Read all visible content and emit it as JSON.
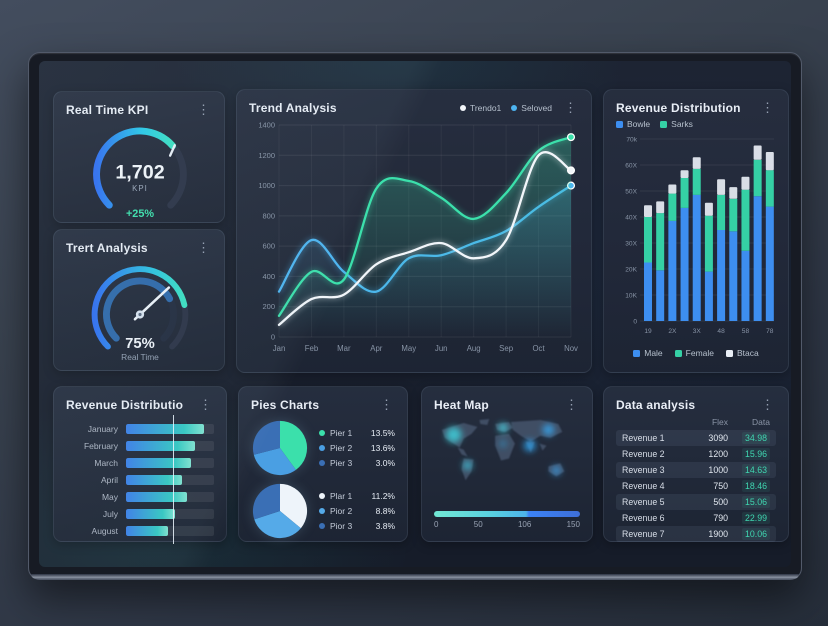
{
  "icons": {
    "kebab": "⋮"
  },
  "colors": {
    "accent_blue": "#3d8ef0",
    "accent_teal": "#35d0a5",
    "accent_cyan": "#4db4f0",
    "accent_mint": "#3be0ab",
    "text_light": "#e9eef6",
    "text_muted": "#98a2b3",
    "panel_bg": "#272f40",
    "screen_bg": "#1a2130"
  },
  "panels": {
    "kpi": {
      "title": "Real Time KPI"
    },
    "gauge2": {
      "title": "Trert Analysis"
    },
    "trend": {
      "title": "Trend Analysis"
    },
    "revbar": {
      "title": "Revenue Distribution"
    },
    "hbar": {
      "title": "Revenue Distributio"
    },
    "pies": {
      "title": "Pies Charts"
    },
    "heat": {
      "title": "Heat Map"
    },
    "table": {
      "title": "Data analysis"
    }
  },
  "chart_data": [
    {
      "id": "kpi_gauge",
      "type": "gauge",
      "value": "1,702",
      "label": "KPI",
      "delta": "+25%",
      "percent": 68
    },
    {
      "id": "rt_gauge",
      "type": "gauge",
      "value": "75%",
      "label": "Real Time",
      "percent": 75
    },
    {
      "id": "trend",
      "type": "line",
      "title": "Trend Analysis",
      "x": [
        "Jan",
        "Feb",
        "Mar",
        "Apr",
        "May",
        "Jun",
        "Aug",
        "Sep",
        "Oct",
        "Nov"
      ],
      "ylim": [
        0,
        1400
      ],
      "yticks": [
        0,
        200,
        400,
        600,
        800,
        1000,
        1200,
        1400
      ],
      "grid": true,
      "legend_position": "top-right",
      "legend": [
        {
          "label": "Trendo1",
          "color": "#f2f6fa"
        },
        {
          "label": "Seloved",
          "color": "#4db4f0"
        }
      ],
      "series": [
        {
          "name": "Seloved",
          "color": "#4db4f0",
          "values": [
            300,
            640,
            430,
            300,
            520,
            540,
            620,
            700,
            860,
            1000
          ]
        },
        {
          "name": "",
          "color": "#3be0ab",
          "values": [
            140,
            430,
            380,
            980,
            1030,
            920,
            780,
            950,
            1230,
            1320
          ]
        },
        {
          "name": "Trendo1",
          "color": "#f2f6fa",
          "values": [
            80,
            250,
            280,
            480,
            560,
            620,
            520,
            640,
            1200,
            1100
          ]
        }
      ]
    },
    {
      "id": "revbar",
      "type": "bar",
      "stacked": true,
      "title": "Revenue Distribution",
      "top_legend": [
        {
          "label": "Bowle",
          "color": "#3d8ef0"
        },
        {
          "label": "Sarks",
          "color": "#35d0a5"
        }
      ],
      "bottom_legend": [
        {
          "label": "Male",
          "color": "#3d8ef0"
        },
        {
          "label": "Female",
          "color": "#35d0a5"
        },
        {
          "label": "Btaca",
          "color": "#e9eef5"
        }
      ],
      "x_tick_labels": [
        "19",
        "2X",
        "3X",
        "48",
        "58",
        "78"
      ],
      "ytick_labels": [
        "0",
        "10K",
        "20K",
        "30X",
        "40X",
        "50X",
        "60X",
        "70k"
      ],
      "ylim_k": [
        0,
        70
      ],
      "values_unit": "k",
      "series": [
        {
          "name": "Male",
          "color": "#3d8ef0",
          "values": [
            22.5,
            19.5,
            38.5,
            43.5,
            48.5,
            19,
            35,
            34.5,
            27,
            48,
            44
          ]
        },
        {
          "name": "Female",
          "color": "#35d0a5",
          "values": [
            17.5,
            22,
            10.5,
            11.5,
            10,
            21.5,
            13.5,
            12.5,
            23.5,
            14,
            14
          ]
        },
        {
          "name": "Btaca",
          "color": "#e9eef5",
          "values": [
            4.5,
            4.5,
            3.5,
            3,
            4.5,
            5,
            6,
            4.5,
            5,
            5.5,
            7
          ]
        }
      ]
    },
    {
      "id": "hbar",
      "type": "bar",
      "orientation": "horizontal",
      "title": "Revenue Distributio",
      "categories": [
        "January",
        "February",
        "March",
        "April",
        "May",
        "July",
        "August"
      ],
      "values": [
        89,
        78,
        74,
        64,
        69,
        56,
        48
      ],
      "xlim": [
        0,
        100
      ],
      "marker_line_at": 54
    },
    {
      "id": "pies",
      "type": "pie",
      "title": "Pies Charts",
      "pies": [
        {
          "legend": [
            {
              "label": "Pier 1",
              "value": "13.5%",
              "color": "#3be0ab"
            },
            {
              "label": "Pier 2",
              "value": "13.6%",
              "color": "#4a9fe3"
            },
            {
              "label": "Pier 3",
              "value": "3.0%",
              "color": "#3a6fb5"
            }
          ],
          "slices": [
            40,
            31,
            29
          ]
        },
        {
          "legend": [
            {
              "label": "Plar 1",
              "value": "11.2%",
              "color": "#eef4fa"
            },
            {
              "label": "Pior 2",
              "value": "8.8%",
              "color": "#55aae8"
            },
            {
              "label": "Pior 3",
              "value": "3.8%",
              "color": "#3a6fb5"
            }
          ],
          "slices": [
            36,
            34,
            30
          ]
        }
      ]
    },
    {
      "id": "heat",
      "type": "heatmap",
      "title": "Heat Map",
      "scale_labels": [
        "0",
        "50",
        "106",
        "150"
      ],
      "hotspots": [
        "north-america",
        "south-america",
        "europe",
        "north-africa",
        "south-asia",
        "east-asia",
        "australia"
      ]
    },
    {
      "id": "table",
      "type": "table",
      "title": "Data analysis",
      "headers": [
        "Flex",
        "Data"
      ],
      "rows": [
        [
          "Revenue 1",
          "3090",
          "34.98"
        ],
        [
          "Revenue 2",
          "1200",
          "15.96"
        ],
        [
          "Revenue 3",
          "1000",
          "14.63"
        ],
        [
          "Revenue 4",
          "750",
          "18.46"
        ],
        [
          "Revenue 5",
          "500",
          "15.06"
        ],
        [
          "Revenue 6",
          "790",
          "22.99"
        ],
        [
          "Revenue 7",
          "1900",
          "10.06"
        ]
      ]
    }
  ]
}
